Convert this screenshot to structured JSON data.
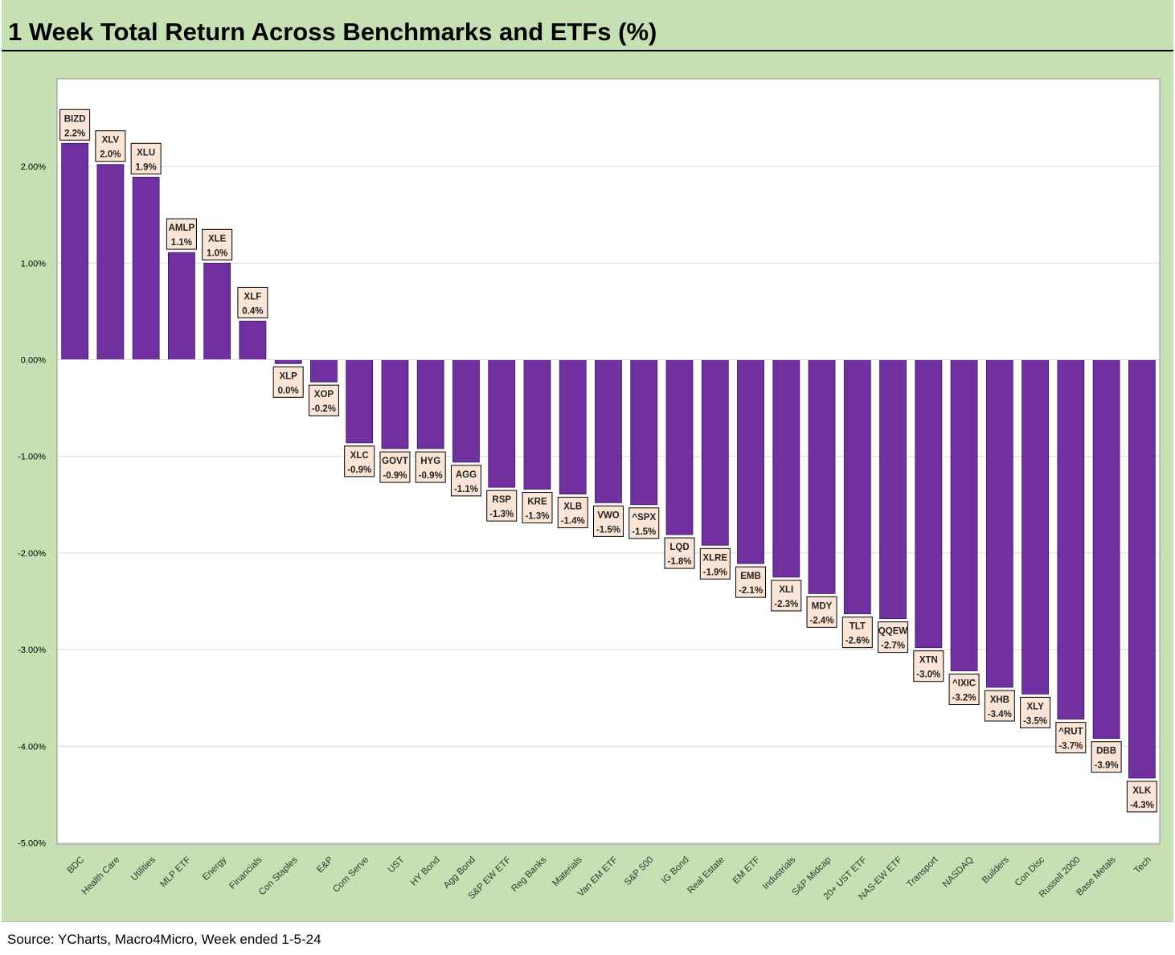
{
  "header": {
    "title": "1 Week Total Return Across Benchmarks and ETFs (%)"
  },
  "footer": {
    "source": "Source: YCharts, Macro4Micro, Week ended 1-5-24"
  },
  "colors": {
    "bar": "#7030a0",
    "background": "#c6e0b4",
    "label_box": "#fbe5d6"
  },
  "chart_data": {
    "type": "bar",
    "title": "1 Week Total Return Across Benchmarks and ETFs (%)",
    "xlabel": "",
    "ylabel": "",
    "ylim": [
      -5.0,
      2.0
    ],
    "y_ticks": [
      "2.00%",
      "1.00%",
      "0.00%",
      "-1.00%",
      "-2.00%",
      "-3.00%",
      "-4.00%",
      "-5.00%"
    ],
    "grid": true,
    "legend": "none",
    "categories": [
      "BDC",
      "Health Care",
      "Utilities",
      "MLP ETF",
      "Energy",
      "Financials",
      "Con Staples",
      "E&P",
      "Com Serve",
      "UST",
      "HY Bond",
      "Agg Bond",
      "S&P EW ETF",
      "Reg Banks",
      "Materials",
      "Van EM ETF",
      "S&P 500",
      "IG Bond",
      "Real Estate",
      "EM ETF",
      "Industrials",
      "S&P Midcap",
      "20+ UST ETF",
      "NAS-EW ETF",
      "Transport",
      "NASDAQ",
      "Builders",
      "Con Disc",
      "Russell 2000",
      "Base Metals",
      "Tech"
    ],
    "tickers": [
      "BIZD",
      "XLV",
      "XLU",
      "AMLP",
      "XLE",
      "XLF",
      "XLP",
      "XOP",
      "XLC",
      "GOVT",
      "HYG",
      "AGG",
      "RSP",
      "KRE",
      "XLB",
      "VWO",
      "^SPX",
      "LQD",
      "XLRE",
      "EMB",
      "XLI",
      "MDY",
      "TLT",
      "QQEW",
      "XTN",
      "^IXIC",
      "XHB",
      "XLY",
      "^RUT",
      "DBB",
      "XLK"
    ],
    "values": [
      2.24,
      2.02,
      1.89,
      1.11,
      1.0,
      0.4,
      -0.04,
      -0.23,
      -0.86,
      -0.92,
      -0.92,
      -1.06,
      -1.32,
      -1.34,
      -1.39,
      -1.48,
      -1.5,
      -1.81,
      -1.92,
      -2.11,
      -2.25,
      -2.42,
      -2.63,
      -2.68,
      -2.98,
      -3.22,
      -3.39,
      -3.46,
      -3.72,
      -3.92,
      -4.33
    ],
    "value_labels": [
      "2.2%",
      "2.0%",
      "1.9%",
      "1.1%",
      "1.0%",
      "0.4%",
      "0.0%",
      "-0.2%",
      "-0.9%",
      "-0.9%",
      "-0.9%",
      "-1.1%",
      "-1.3%",
      "-1.3%",
      "-1.4%",
      "-1.5%",
      "-1.5%",
      "-1.8%",
      "-1.9%",
      "-2.1%",
      "-2.3%",
      "-2.4%",
      "-2.6%",
      "-2.7%",
      "-3.0%",
      "-3.2%",
      "-3.4%",
      "-3.5%",
      "-3.7%",
      "-3.9%",
      "-4.3%"
    ]
  }
}
